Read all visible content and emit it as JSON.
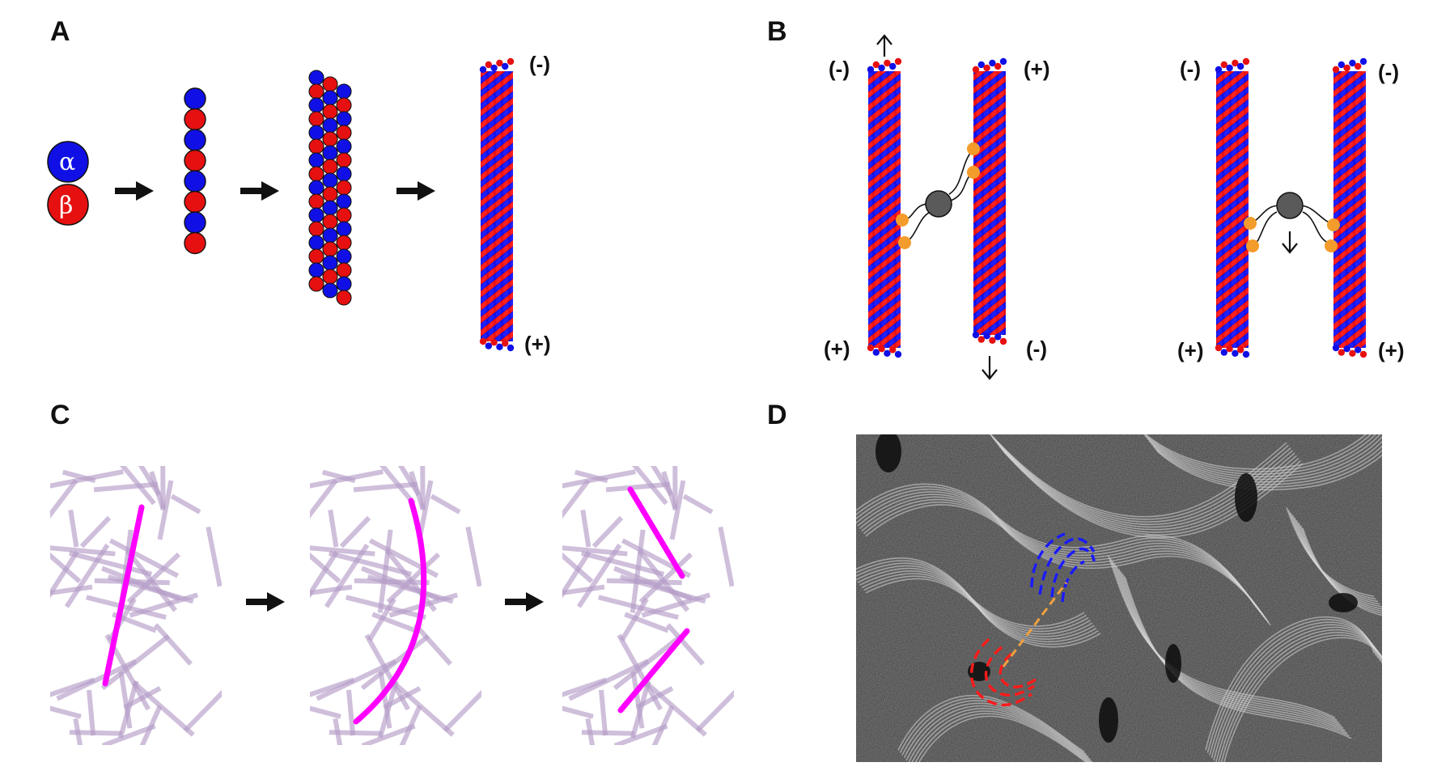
{
  "panels": {
    "A": {
      "letter": "A",
      "alpha_symbol": "α",
      "beta_symbol": "β",
      "polarity_minus": "(-)",
      "polarity_plus": "(+)"
    },
    "B": {
      "letter": "B",
      "left_pair": {
        "left_top": "(-)",
        "right_top": "(+)",
        "left_bottom": "(+)",
        "right_bottom": "(-)"
      },
      "right_pair": {
        "left_top": "(-)",
        "right_top": "(-)",
        "left_bottom": "(+)",
        "right_bottom": "(+)"
      }
    },
    "C": {
      "letter": "C"
    },
    "D": {
      "letter": "D"
    }
  },
  "colors": {
    "alpha": "#1010e6",
    "beta": "#e61010",
    "motor_head": "#f39c2b",
    "motor_body": "#5a5a5a",
    "highlight_filament": "#ff00ff",
    "background_filaments": "#b59cc8",
    "defect_plus": "#1a1aff",
    "defect_minus": "#ff1a1a",
    "defect_link": "#f0a040"
  }
}
